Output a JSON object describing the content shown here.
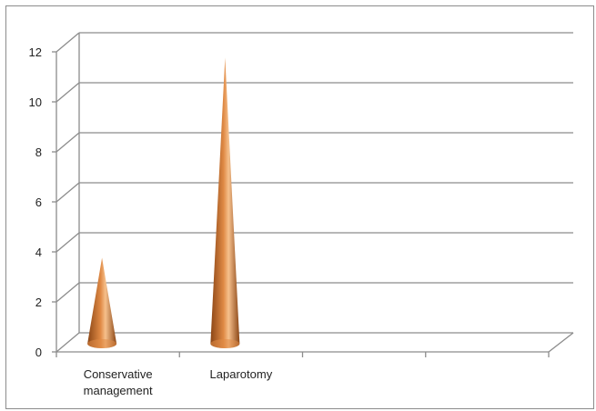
{
  "chart_data": {
    "type": "bar",
    "style": "3d-cone",
    "categories": [
      "Conservative management",
      "Laparotomy"
    ],
    "category_lines": [
      [
        "Conservative",
        "management"
      ],
      [
        "Laparotomy"
      ]
    ],
    "values": [
      3,
      11
    ],
    "slots": 4,
    "ylim": [
      0,
      12
    ],
    "yticks": [
      0,
      2,
      4,
      6,
      8,
      10,
      12
    ],
    "grid": true,
    "legend": "none",
    "colors": {
      "cone_dark": "#8a4515",
      "cone_mid": "#e08a45",
      "cone_light": "#f6c08c",
      "grid": "#8c8c8c"
    }
  }
}
